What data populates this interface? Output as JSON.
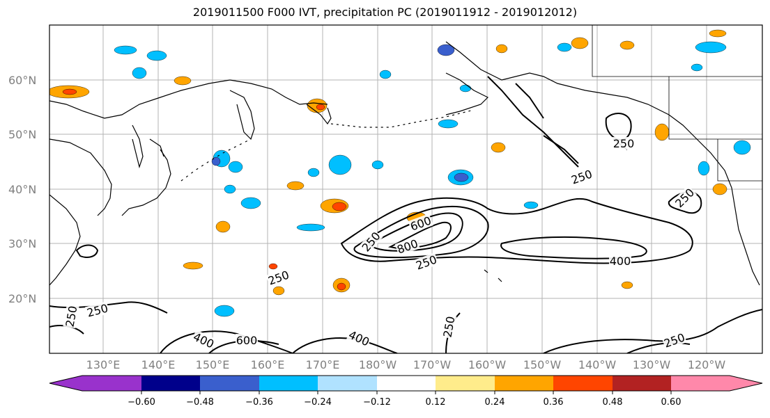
{
  "title": "2019011500 F000 IVT, precipitation PC (2019011912 - 2019012012)",
  "lat_labels": [
    "60°N",
    "50°N",
    "40°N",
    "30°N",
    "20°N"
  ],
  "lon_labels": [
    "130°E",
    "140°E",
    "150°E",
    "160°E",
    "170°E",
    "180°W",
    "170°W",
    "160°W",
    "150°W",
    "140°W",
    "130°W",
    "120°W"
  ],
  "contour_labels": [
    "250",
    "250",
    "250",
    "250",
    "250",
    "250",
    "400",
    "400",
    "400",
    "600",
    "600",
    "800",
    "250",
    "250",
    "250",
    "250"
  ],
  "colorbar": {
    "ticks": [
      "−0.60",
      "−0.48",
      "−0.36",
      "−0.24",
      "−0.12",
      "0.12",
      "0.24",
      "0.36",
      "0.48",
      "0.60"
    ],
    "colors": [
      "#9932cc",
      "#00008b",
      "#3a5fcd",
      "#00bfff",
      "#b0e2ff",
      "#ffffff",
      "#ffec8b",
      "#ffa500",
      "#ff4500",
      "#b22222",
      "#ff88aa"
    ]
  }
}
